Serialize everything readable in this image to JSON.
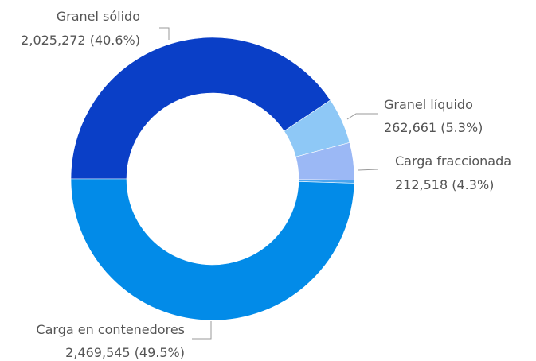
{
  "chart_data": {
    "type": "pie",
    "variant": "donut",
    "slices": [
      {
        "name": "Granel sólido",
        "value": 2025272,
        "percent": 40.6,
        "color": "#0a3fc7",
        "label_value": "2,025,272 (40.6%)"
      },
      {
        "name": "Granel líquido",
        "value": 262661,
        "percent": 5.3,
        "color": "#8ec8f6",
        "label_value": "262,661 (5.3%)"
      },
      {
        "name": "Carga fraccionada",
        "value": 212518,
        "percent": 4.3,
        "color": "#9bb8f5",
        "label_value": "212,518 (4.3%)"
      },
      {
        "name": "",
        "value": 18000,
        "percent": 0.4,
        "color": "#4aa5ef",
        "label_value": ""
      },
      {
        "name": "Carga en contenedores",
        "value": 2469545,
        "percent": 49.5,
        "color": "#028be8",
        "label_value": "2,469,545 (49.5%)"
      }
    ]
  }
}
